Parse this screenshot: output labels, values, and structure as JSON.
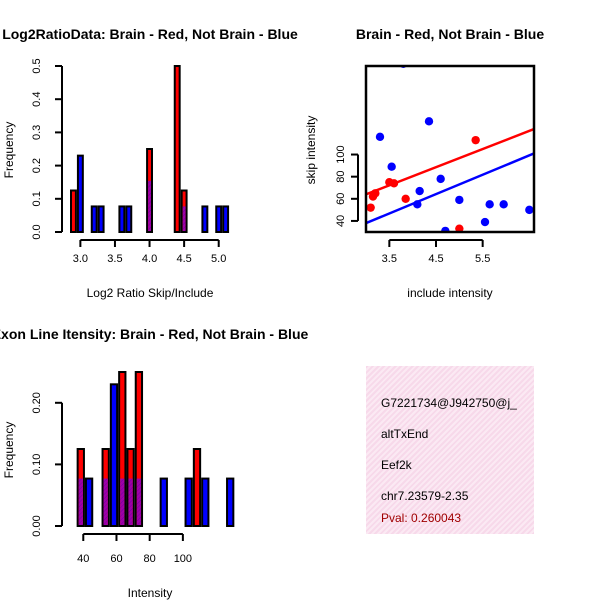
{
  "chart_data": [
    {
      "type": "bar",
      "title": "Log2RatioData: Brain - Red, Not Brain - Blue",
      "xlabel": "Log2 Ratio Skip/Include",
      "ylabel": "Frequency",
      "xlim": [
        2.85,
        5.25
      ],
      "ylim": [
        0,
        0.5
      ],
      "xticks": [
        3.0,
        3.5,
        4.0,
        4.5,
        5.0
      ],
      "xtick_labels": [
        "3.0",
        "3.5",
        "4.0",
        "4.5",
        "5.0"
      ],
      "yticks": [
        0.0,
        0.1,
        0.2,
        0.3,
        0.4,
        0.5
      ],
      "ytick_labels": [
        "0.0",
        "0.1",
        "0.2",
        "0.3",
        "0.4",
        "0.5"
      ],
      "series": [
        {
          "name": "Brain",
          "color": "#ff0000",
          "bins": [
            [
              2.85,
              2.95,
              0.125
            ],
            [
              3.95,
              4.05,
              0.25
            ],
            [
              4.35,
              4.45,
              0.5
            ],
            [
              4.45,
              4.55,
              0.125
            ]
          ]
        },
        {
          "name": "Not Brain",
          "color": "#0000ff",
          "bins": [
            [
              2.95,
              3.05,
              0.23
            ],
            [
              3.15,
              3.25,
              0.077
            ],
            [
              3.25,
              3.35,
              0.077
            ],
            [
              3.55,
              3.65,
              0.077
            ],
            [
              3.65,
              3.75,
              0.077
            ],
            [
              3.95,
              4.05,
              0.154
            ],
            [
              4.45,
              4.55,
              0.077
            ],
            [
              4.75,
              4.85,
              0.077
            ],
            [
              4.95,
              5.05,
              0.077
            ],
            [
              5.05,
              5.15,
              0.077
            ]
          ]
        }
      ]
    },
    {
      "type": "scatter",
      "title": "Brain - Red, Not Brain - Blue",
      "xlabel": "include intensity",
      "ylabel": "skip intensity",
      "xlim": [
        3.0,
        6.6
      ],
      "ylim": [
        30,
        180
      ],
      "xticks": [
        3.5,
        4.5,
        5.5
      ],
      "xtick_labels": [
        "3.5",
        "4.5",
        "5.5"
      ],
      "yticks": [
        40,
        60,
        80,
        100
      ],
      "ytick_labels": [
        "40",
        "60",
        "80",
        "100"
      ],
      "series": [
        {
          "name": "Brain",
          "color": "#ff0000",
          "points": [
            [
              3.1,
              52
            ],
            [
              3.15,
              62
            ],
            [
              3.2,
              65
            ],
            [
              3.5,
              75
            ],
            [
              3.6,
              74
            ],
            [
              3.85,
              60
            ],
            [
              5.0,
              33
            ],
            [
              5.35,
              113
            ]
          ],
          "fit": [
            [
              3.0,
              64
            ],
            [
              6.6,
              123
            ]
          ]
        },
        {
          "name": "Not Brain",
          "color": "#0000ff",
          "points": [
            [
              3.3,
              116
            ],
            [
              3.55,
              89
            ],
            [
              3.8,
              182
            ],
            [
              4.15,
              67
            ],
            [
              4.1,
              55
            ],
            [
              4.35,
              130
            ],
            [
              4.6,
              78
            ],
            [
              4.7,
              31
            ],
            [
              5.0,
              59
            ],
            [
              5.55,
              39
            ],
            [
              5.65,
              55
            ],
            [
              5.95,
              55
            ],
            [
              6.5,
              50
            ]
          ],
          "fit": [
            [
              3.0,
              38
            ],
            [
              6.6,
              101
            ]
          ]
        }
      ]
    },
    {
      "type": "bar",
      "title": "Exon Line Itensity: Brain - Red, Not Brain - Blue",
      "xlabel": "Intensity",
      "ylabel": "Frequency",
      "xlim": [
        32,
        132
      ],
      "ylim": [
        0,
        0.25
      ],
      "xticks": [
        40,
        60,
        80,
        100
      ],
      "xtick_labels": [
        "40",
        "60",
        "80",
        "100"
      ],
      "yticks": [
        0.0,
        0.1,
        0.2
      ],
      "ytick_labels": [
        "0.00",
        "0.10",
        "0.20"
      ],
      "series": [
        {
          "name": "Brain",
          "color": "#ff0000",
          "bins": [
            [
              36,
              41,
              0.125
            ],
            [
              51,
              56,
              0.125
            ],
            [
              61,
              66,
              0.25
            ],
            [
              66,
              71,
              0.125
            ],
            [
              71,
              76,
              0.25
            ],
            [
              106,
              111,
              0.125
            ]
          ]
        },
        {
          "name": "Not Brain",
          "color": "#0000ff",
          "bins": [
            [
              36,
              41,
              0.077
            ],
            [
              41,
              46,
              0.077
            ],
            [
              51,
              56,
              0.077
            ],
            [
              56,
              61,
              0.23
            ],
            [
              61,
              66,
              0.077
            ],
            [
              66,
              71,
              0.077
            ],
            [
              71,
              76,
              0.077
            ],
            [
              86,
              91,
              0.077
            ],
            [
              101,
              106,
              0.077
            ],
            [
              111,
              116,
              0.077
            ],
            [
              126,
              131,
              0.077
            ]
          ]
        }
      ]
    }
  ],
  "info": {
    "id": "G7221734@J942750@j_",
    "event": "altTxEnd",
    "gene": "Eef2k",
    "location": "chr7.23579-2.35",
    "pval": "Pval: 0.260043",
    "pval_color": "#a00000"
  }
}
